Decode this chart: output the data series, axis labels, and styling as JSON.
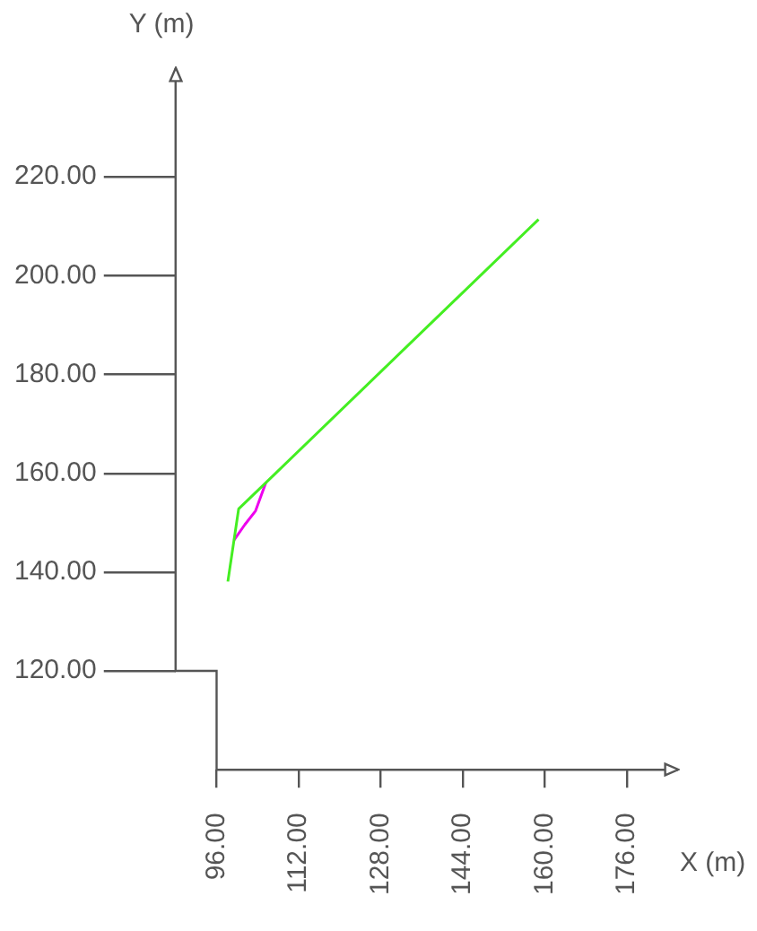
{
  "chart_data": {
    "type": "line",
    "xlabel": "X (m)",
    "ylabel": "Y (m)",
    "xlim": [
      88,
      186
    ],
    "ylim": [
      100,
      242
    ],
    "xticks": [
      {
        "value": 96,
        "label": "96.00"
      },
      {
        "value": 112,
        "label": "112.00"
      },
      {
        "value": 128,
        "label": "128.00"
      },
      {
        "value": 144,
        "label": "144.00"
      },
      {
        "value": 160,
        "label": "160.00"
      },
      {
        "value": 176,
        "label": "176.00"
      }
    ],
    "yticks": [
      {
        "value": 120,
        "label": "120.00"
      },
      {
        "value": 140,
        "label": "140.00"
      },
      {
        "value": 160,
        "label": "160.00"
      },
      {
        "value": 180,
        "label": "180.00"
      },
      {
        "value": 200,
        "label": "200.00"
      },
      {
        "value": 220,
        "label": "220.00"
      }
    ],
    "marker": "none",
    "series": [
      {
        "color": "#44ee22",
        "x": [
          98.2,
          100.3,
          105.8,
          158.8
        ],
        "values": [
          138.1,
          152.8,
          158.3,
          211.4
        ]
      },
      {
        "color": "#ee00ee",
        "x": [
          99.4,
          101.5,
          103.6,
          105.6
        ],
        "values": [
          146.5,
          149.6,
          152.4,
          158.1
        ]
      }
    ]
  }
}
